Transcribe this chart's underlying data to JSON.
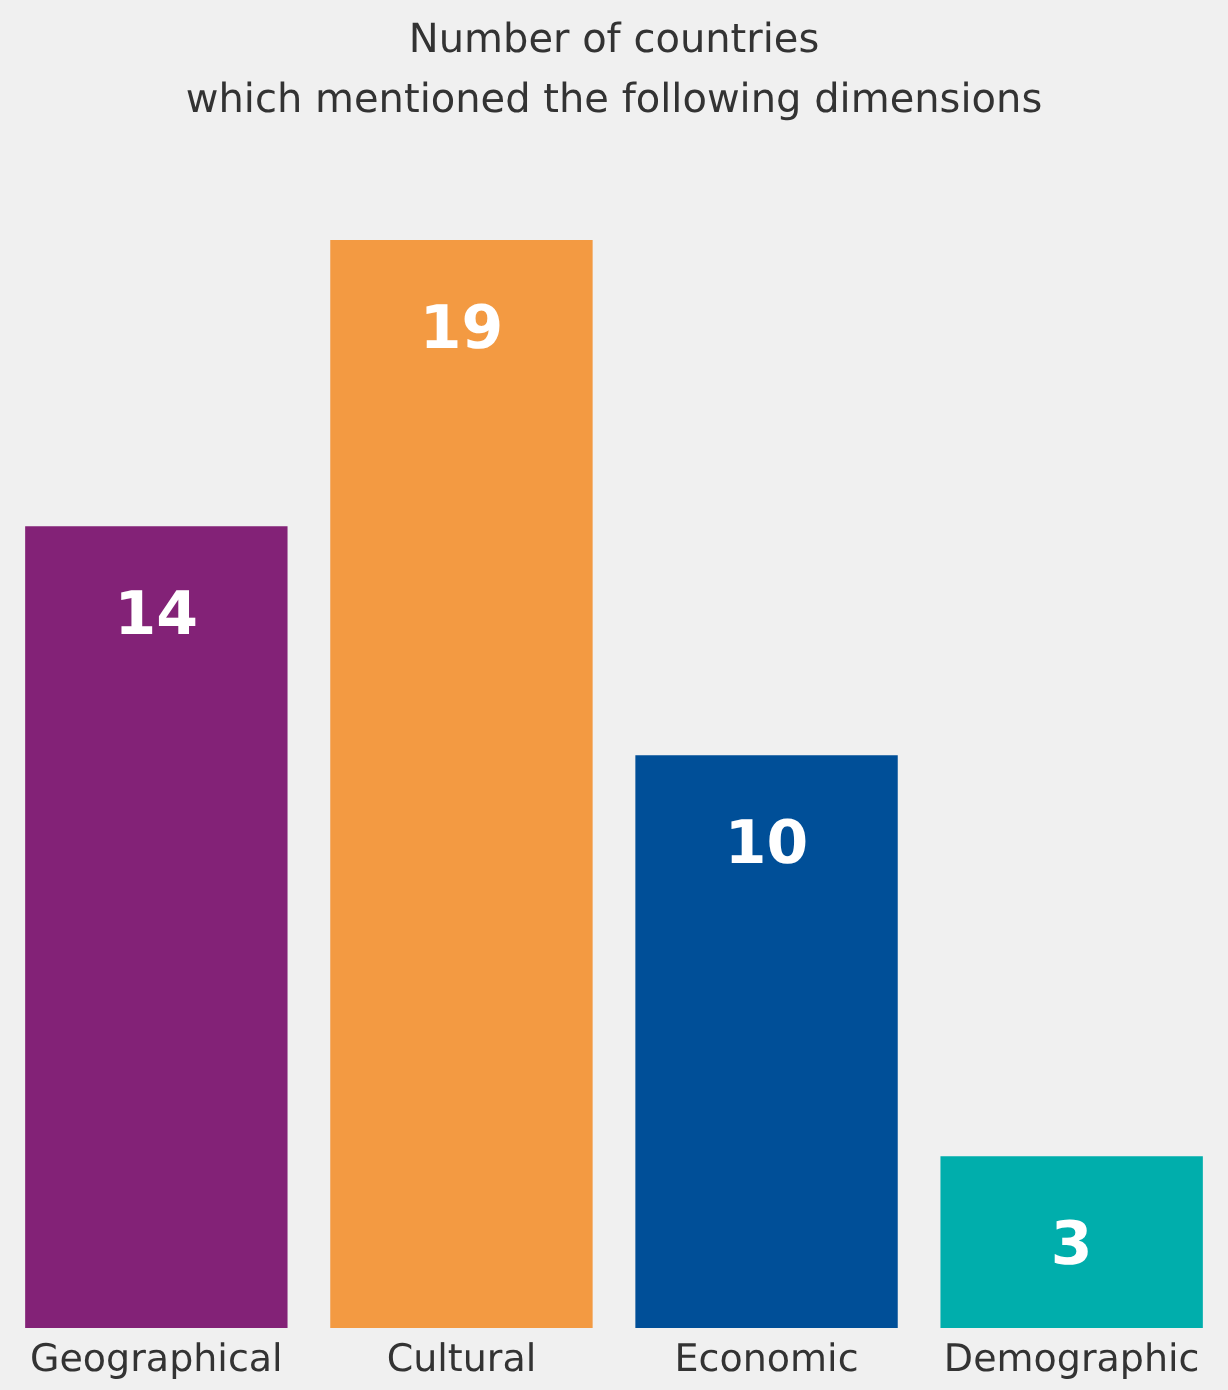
{
  "chart_data": {
    "type": "bar",
    "title": "Number of countries\nwhich mentioned the following dimensions",
    "categories": [
      "Geographical",
      "Cultural",
      "Economic",
      "Demographic"
    ],
    "values": [
      14,
      19,
      10,
      3
    ],
    "colors": [
      "#832277",
      "#f39a42",
      "#004f98",
      "#00aeac"
    ],
    "data_labels": true,
    "grid": false,
    "legend": false
  }
}
